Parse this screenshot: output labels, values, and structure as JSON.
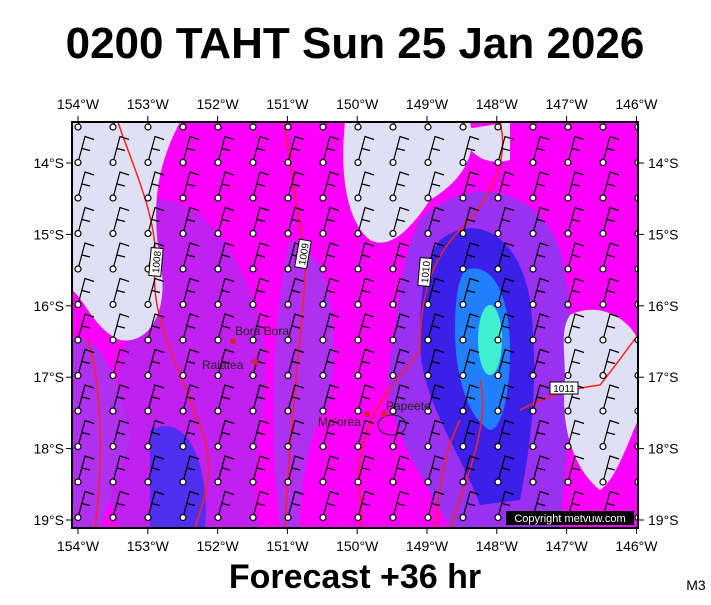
{
  "header": {
    "title": "0200 TAHT Sun 25 Jan 2026"
  },
  "footer": {
    "forecast": "Forecast +36 hr",
    "model": "M3"
  },
  "longitudes": [
    "154°W",
    "153°W",
    "152°W",
    "151°W",
    "150°W",
    "149°W",
    "148°W",
    "147°W",
    "146°W"
  ],
  "latitudes": [
    "14°S",
    "15°S",
    "16°S",
    "17°S",
    "18°S",
    "19°S"
  ],
  "isobars": [
    "1008",
    "1009",
    "1010",
    "1011"
  ],
  "places": [
    "Bora Bora",
    "Raiatea",
    "Mo'orea",
    "Papeete"
  ],
  "copyright": "Copyright metvuw.com"
}
